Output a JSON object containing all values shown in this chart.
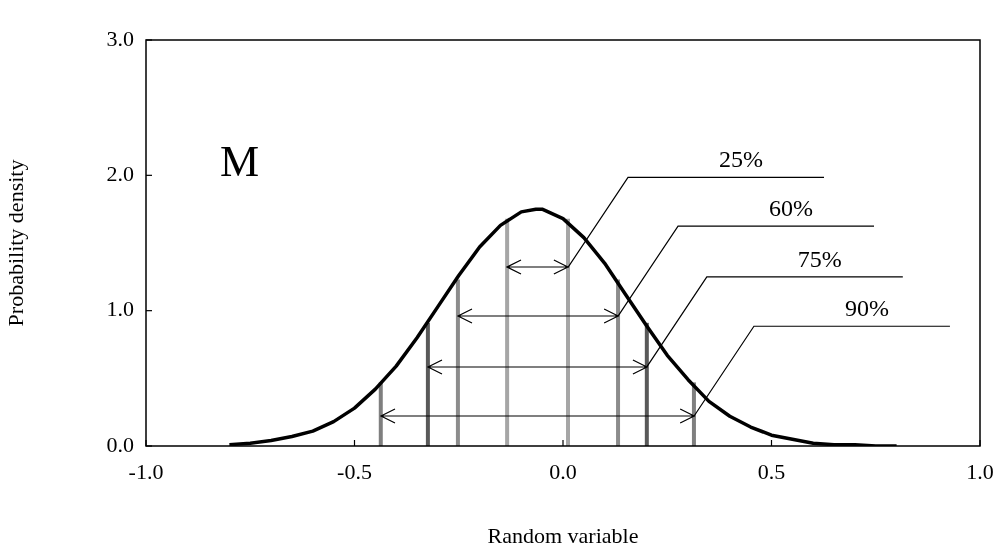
{
  "chart_data": {
    "type": "line",
    "xlabel": "Random variable",
    "ylabel": "Probability density",
    "xlim": [
      -1,
      1
    ],
    "xticks": [
      {
        "value": -1,
        "label": "-1.0"
      },
      {
        "value": -0.5,
        "label": "-0.5"
      },
      {
        "value": 0,
        "label": "0.0"
      },
      {
        "value": 0.5,
        "label": "0.5"
      },
      {
        "value": 1,
        "label": "1.0"
      }
    ],
    "ylim": [
      0,
      3
    ],
    "yticks": [
      {
        "value": 0,
        "label": "0.0"
      },
      {
        "value": 1,
        "label": "1.0"
      },
      {
        "value": 2,
        "label": "2.0"
      },
      {
        "value": 3,
        "label": "3.0"
      }
    ],
    "grid": false,
    "legend": false,
    "marker": "none",
    "series": [
      {
        "color": "#000000",
        "x": [
          -0.8,
          -0.75,
          -0.7,
          -0.65,
          -0.6,
          -0.55,
          -0.5,
          -0.45,
          -0.4,
          -0.35,
          -0.3,
          -0.25,
          -0.2,
          -0.15,
          -0.1,
          -0.065,
          -0.05,
          0,
          0.05,
          0.1,
          0.15,
          0.2,
          0.25,
          0.3,
          0.35,
          0.4,
          0.45,
          0.5,
          0.55,
          0.6,
          0.65,
          0.7,
          0.75,
          0.8
        ],
        "values": [
          0.01,
          0.02,
          0.04,
          0.07,
          0.11,
          0.18,
          0.28,
          0.42,
          0.59,
          0.8,
          1.03,
          1.26,
          1.47,
          1.63,
          1.73,
          1.75,
          1.75,
          1.68,
          1.54,
          1.35,
          1.12,
          0.89,
          0.67,
          0.49,
          0.33,
          0.22,
          0.14,
          0.08,
          0.05,
          0.02,
          0.01,
          0.01,
          0,
          0
        ]
      },
      {
        "color": "#a6a6a6",
        "x": [
          -0.134,
          -0.134
        ],
        "values": [
          0,
          1.68
        ]
      },
      {
        "color": "#a6a6a6",
        "x": [
          0.012,
          0.012
        ],
        "values": [
          0,
          1.68
        ]
      },
      {
        "color": "#8c8c8c",
        "x": [
          -0.252,
          -0.252
        ],
        "values": [
          0,
          1.23
        ]
      },
      {
        "color": "#8c8c8c",
        "x": [
          0.132,
          0.132
        ],
        "values": [
          0,
          1.23
        ]
      },
      {
        "color": "#595959",
        "x": [
          -0.324,
          -0.324
        ],
        "values": [
          0,
          0.91
        ]
      },
      {
        "color": "#595959",
        "x": [
          0.201,
          0.201
        ],
        "values": [
          0,
          0.91
        ]
      },
      {
        "color": "#7f7f7f",
        "x": [
          -0.437,
          -0.437
        ],
        "values": [
          0,
          0.47
        ]
      },
      {
        "color": "#7f7f7f",
        "x": [
          0.314,
          0.314
        ],
        "values": [
          0,
          0.47
        ]
      }
    ],
    "annotations": [
      "M",
      {
        "text": "25%",
        "x": 0.012,
        "y": 1.32
      },
      {
        "text": "60%",
        "x": 0.132,
        "y": 0.96
      },
      {
        "text": "75%",
        "x": 0.201,
        "y": 0.585
      },
      {
        "text": "90%",
        "x": 0.314,
        "y": 0.22
      }
    ]
  }
}
